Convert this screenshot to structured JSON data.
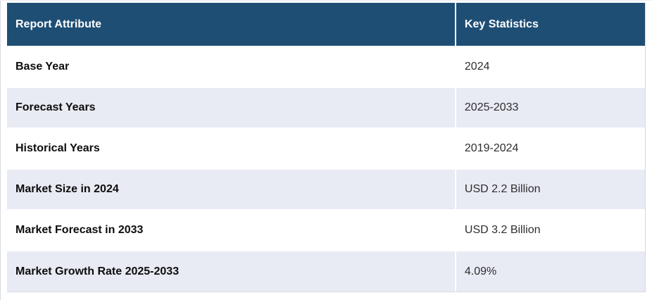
{
  "table": {
    "columns": [
      "Report Attribute",
      "Key Statistics"
    ],
    "rows": [
      {
        "attribute": "Base Year",
        "value": "2024"
      },
      {
        "attribute": "Forecast Years",
        "value": "2025-2033"
      },
      {
        "attribute": "Historical Years",
        "value": "2019-2024"
      },
      {
        "attribute": "Market Size in 2024",
        "value": "USD 2.2 Billion"
      },
      {
        "attribute": "Market Forecast in 2033",
        "value": "USD 3.2 Billion"
      },
      {
        "attribute": "Market Growth Rate 2025-2033",
        "value": "4.09%"
      }
    ],
    "colors": {
      "header_bg": "#1f4e74",
      "header_text": "#ffffff",
      "row_bg": "#ffffff",
      "row_alt_bg": "#e8eaf4",
      "outer_border": "#d6d9e0",
      "label_text": "#0d0d0d",
      "value_text": "#2e2e2e"
    }
  }
}
